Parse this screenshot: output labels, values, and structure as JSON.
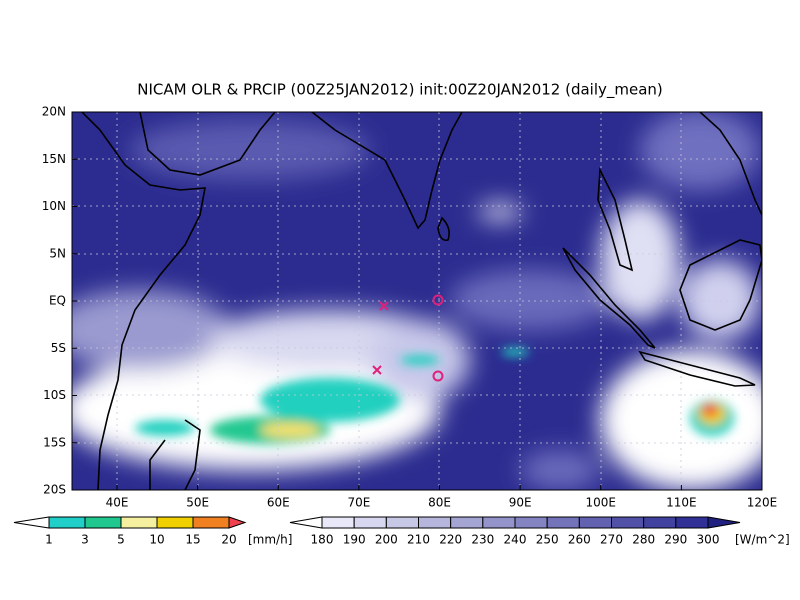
{
  "map": {
    "title": "NICAM OLR & PRCIP (00Z25JAN2012) init:00Z20JAN2012 (daily_mean)",
    "lat_labels": [
      "20N",
      "15N",
      "10N",
      "5N",
      "EQ",
      "5S",
      "10S",
      "15S",
      "20S"
    ],
    "lon_labels": [
      "40E",
      "50E",
      "60E",
      "70E",
      "80E",
      "90E",
      "100E",
      "110E",
      "120E"
    ],
    "precip_colorbar": {
      "labels": [
        "1",
        "3",
        "5",
        "10",
        "15",
        "20"
      ],
      "unit": "[mm/h]"
    },
    "olr_colorbar": {
      "labels": [
        "180",
        "190",
        "200",
        "210",
        "220",
        "230",
        "240",
        "250",
        "260",
        "270",
        "280",
        "290",
        "300"
      ],
      "unit": "[W/m^2]"
    }
  }
}
